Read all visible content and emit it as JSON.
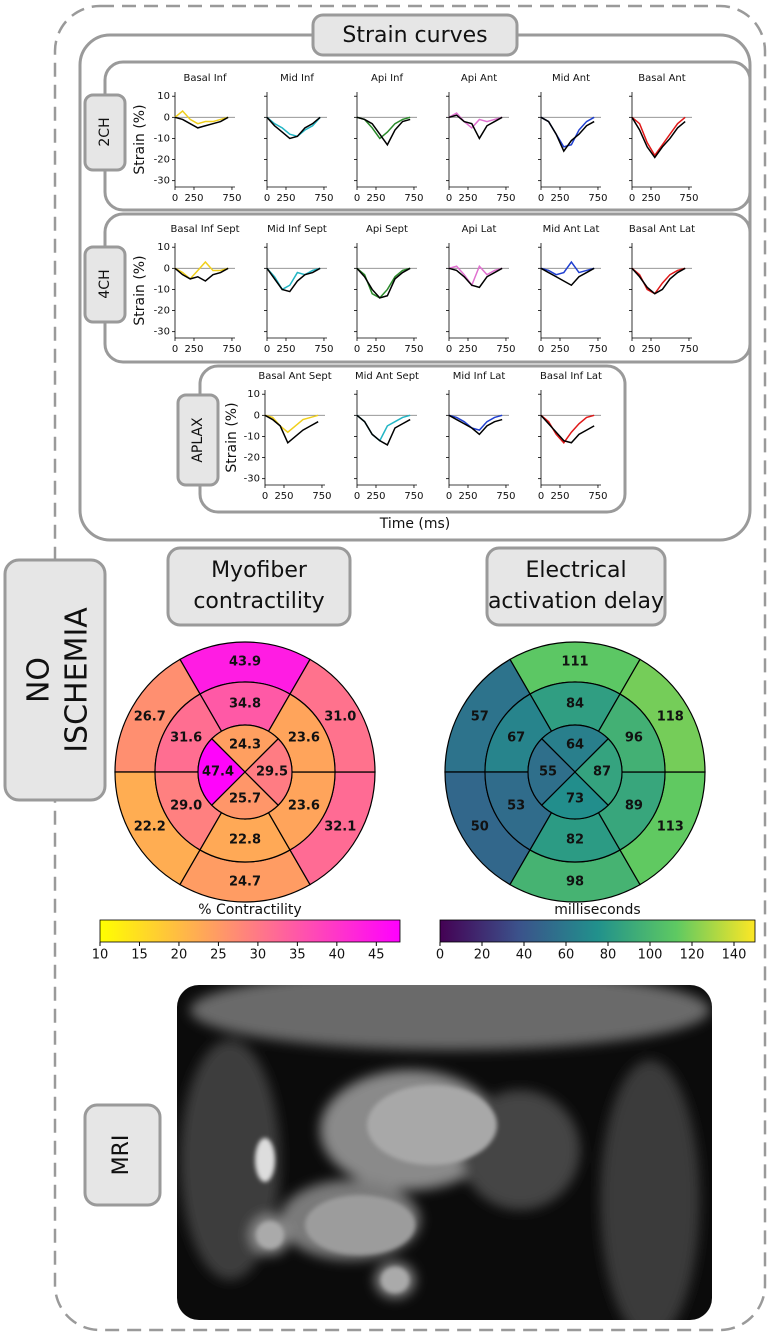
{
  "label_lines": [
    "NO",
    "ISCHEMIA"
  ],
  "strain": {
    "title": "Strain curves",
    "x_label": "Time (ms)",
    "y_label": "Strain (%)",
    "xlim": [
      0,
      790
    ],
    "ylim": [
      -33,
      12
    ],
    "xticks": [
      0,
      250,
      750
    ],
    "yticks": [
      10,
      0,
      -10,
      -20,
      -30
    ],
    "reference_line": 0,
    "x": [
      0,
      100,
      200,
      300,
      400,
      500,
      600,
      700
    ],
    "views": [
      {
        "name": "2CH",
        "panels": [
          {
            "title": "Basal Inf",
            "series": [
              {
                "color": "#f0cf1c",
                "values": [
                  0,
                  3,
                  -1,
                  -3,
                  -2,
                  -2,
                  -1,
                  0
                ]
              },
              {
                "color": "#000000",
                "values": [
                  0,
                  -1,
                  -3,
                  -5,
                  -4,
                  -3,
                  -2,
                  0
                ]
              }
            ]
          },
          {
            "title": "Mid Inf",
            "series": [
              {
                "color": "#22b5c4",
                "values": [
                  0,
                  -3,
                  -5,
                  -8,
                  -9,
                  -6,
                  -4,
                  0
                ]
              },
              {
                "color": "#000000",
                "values": [
                  0,
                  -4,
                  -7,
                  -10,
                  -9,
                  -5,
                  -3,
                  0
                ]
              }
            ]
          },
          {
            "title": "Api Inf",
            "series": [
              {
                "color": "#2a8a2a",
                "values": [
                  0,
                  -1,
                  -5,
                  -10,
                  -7,
                  -3,
                  -1,
                  0
                ]
              },
              {
                "color": "#000000",
                "values": [
                  0,
                  -1,
                  -3,
                  -8,
                  -13,
                  -6,
                  -2,
                  -1
                ]
              }
            ]
          },
          {
            "title": "Api Ant",
            "series": [
              {
                "color": "#e070d0",
                "values": [
                  0,
                  2,
                  -2,
                  -5,
                  -1,
                  -2,
                  -1,
                  0
                ]
              },
              {
                "color": "#000000",
                "values": [
                  0,
                  1,
                  -2,
                  -3,
                  -10,
                  -4,
                  -2,
                  0
                ]
              }
            ]
          },
          {
            "title": "Mid Ant",
            "series": [
              {
                "color": "#1f3fd0",
                "values": [
                  0,
                  -2,
                  -8,
                  -14,
                  -13,
                  -6,
                  -2,
                  0
                ]
              },
              {
                "color": "#000000",
                "values": [
                  0,
                  -2,
                  -8,
                  -16,
                  -11,
                  -8,
                  -4,
                  -2
                ]
              }
            ]
          },
          {
            "title": "Basal Ant",
            "series": [
              {
                "color": "#e01818",
                "values": [
                  0,
                  -3,
                  -12,
                  -18,
                  -13,
                  -8,
                  -3,
                  0
                ]
              },
              {
                "color": "#000000",
                "values": [
                  0,
                  -6,
                  -14,
                  -19,
                  -14,
                  -10,
                  -5,
                  -2
                ]
              }
            ]
          }
        ]
      },
      {
        "name": "4CH",
        "panels": [
          {
            "title": "Basal Inf Sept",
            "series": [
              {
                "color": "#f0cf1c",
                "values": [
                  0,
                  -2,
                  -5,
                  -1,
                  3,
                  -1,
                  -1,
                  0
                ]
              },
              {
                "color": "#000000",
                "values": [
                  0,
                  -3,
                  -5,
                  -4,
                  -6,
                  -3,
                  -2,
                  0
                ]
              }
            ]
          },
          {
            "title": "Mid Inf Sept",
            "series": [
              {
                "color": "#22b5c4",
                "values": [
                  0,
                  -4,
                  -10,
                  -8,
                  -2,
                  -3,
                  -1,
                  0
                ]
              },
              {
                "color": "#000000",
                "values": [
                  0,
                  -5,
                  -10,
                  -11,
                  -6,
                  -3,
                  -2,
                  0
                ]
              }
            ]
          },
          {
            "title": "Api Sept",
            "series": [
              {
                "color": "#2a8a2a",
                "values": [
                  0,
                  -3,
                  -12,
                  -14,
                  -10,
                  -4,
                  -1,
                  0
                ]
              },
              {
                "color": "#000000",
                "values": [
                  0,
                  -4,
                  -10,
                  -14,
                  -13,
                  -5,
                  -2,
                  0
                ]
              }
            ]
          },
          {
            "title": "Api Lat",
            "series": [
              {
                "color": "#e070d0",
                "values": [
                  0,
                  1,
                  -3,
                  -8,
                  1,
                  -3,
                  -1,
                  0
                ]
              },
              {
                "color": "#000000",
                "values": [
                  0,
                  -1,
                  -4,
                  -8,
                  -9,
                  -4,
                  -2,
                  0
                ]
              }
            ]
          },
          {
            "title": "Mid Ant Lat",
            "series": [
              {
                "color": "#1f3fd0",
                "values": [
                  0,
                  -1,
                  -3,
                  -2,
                  3,
                  -2,
                  -1,
                  0
                ]
              },
              {
                "color": "#000000",
                "values": [
                  0,
                  -2,
                  -4,
                  -6,
                  -8,
                  -4,
                  -2,
                  0
                ]
              }
            ]
          },
          {
            "title": "Basal Ant Lat",
            "series": [
              {
                "color": "#e01818",
                "values": [
                  0,
                  -3,
                  -10,
                  -12,
                  -7,
                  -3,
                  -1,
                  0
                ]
              },
              {
                "color": "#000000",
                "values": [
                  0,
                  -4,
                  -9,
                  -12,
                  -10,
                  -5,
                  -2,
                  0
                ]
              }
            ]
          }
        ]
      },
      {
        "name": "APLAX",
        "panels": [
          {
            "title": "Basal Ant Sept",
            "series": [
              {
                "color": "#f0cf1c",
                "values": [
                  0,
                  -1,
                  -5,
                  -8,
                  -5,
                  -2,
                  -1,
                  0
                ]
              },
              {
                "color": "#000000",
                "values": [
                  0,
                  -2,
                  -5,
                  -13,
                  -10,
                  -7,
                  -5,
                  -3
                ]
              }
            ]
          },
          {
            "title": "Mid Ant Sept",
            "series": [
              {
                "color": "#22b5c4",
                "values": [
                  0,
                  -3,
                  -9,
                  -12,
                  -5,
                  -3,
                  -1,
                  0
                ]
              },
              {
                "color": "#000000",
                "values": [
                  0,
                  -3,
                  -9,
                  -12,
                  -14,
                  -6,
                  -4,
                  -2
                ]
              }
            ]
          },
          {
            "title": "Mid Inf Lat",
            "series": [
              {
                "color": "#1f3fd0",
                "values": [
                  0,
                  -1,
                  -3,
                  -6,
                  -7,
                  -3,
                  -1,
                  0
                ]
              },
              {
                "color": "#000000",
                "values": [
                  0,
                  -2,
                  -4,
                  -6,
                  -9,
                  -5,
                  -3,
                  -2
                ]
              }
            ]
          },
          {
            "title": "Basal Inf Lat",
            "series": [
              {
                "color": "#e01818",
                "values": [
                  0,
                  -3,
                  -9,
                  -13,
                  -8,
                  -4,
                  -1,
                  0
                ]
              },
              {
                "color": "#000000",
                "values": [
                  0,
                  -4,
                  -8,
                  -12,
                  -13,
                  -9,
                  -7,
                  -5
                ]
              }
            ]
          }
        ]
      }
    ]
  },
  "bullseyes": [
    {
      "title_lines": [
        "Myofiber",
        "contractility"
      ],
      "colorbar_label": "% Contractility",
      "clim": [
        10,
        48
      ],
      "cticks": [
        10,
        15,
        20,
        25,
        30,
        35,
        40,
        45
      ],
      "colormap": [
        "#ffff00",
        "#ff00ff"
      ],
      "outer": [
        43.9,
        26.7,
        22.2,
        24.7,
        32.1,
        31.0
      ],
      "outer_labels": [
        "43.9",
        "26.7",
        "22.2",
        "24.7",
        "32.1",
        "31.0"
      ],
      "mid": [
        34.8,
        31.6,
        29.0,
        22.8,
        23.6,
        23.6
      ],
      "mid_labels": [
        "34.8",
        "31.6",
        "29.0",
        "22.8",
        "23.6",
        "23.6"
      ],
      "inner": [
        24.3,
        47.4,
        25.7,
        29.5
      ],
      "inner_labels": [
        "24.3",
        "47.4",
        "25.7",
        "29.5"
      ]
    },
    {
      "title_lines": [
        "Electrical",
        "activation delay"
      ],
      "colorbar_label": "milliseconds",
      "clim": [
        0,
        150
      ],
      "cticks": [
        0,
        20,
        40,
        60,
        80,
        100,
        120,
        140
      ],
      "colormap": [
        "#440154",
        "#3b528b",
        "#21918c",
        "#5ec962",
        "#fde725"
      ],
      "outer": [
        111,
        57,
        50,
        98,
        113,
        118
      ],
      "mid": [
        84,
        67,
        53,
        82,
        89,
        96
      ],
      "inner": [
        64,
        55,
        73,
        87
      ]
    }
  ],
  "mri_label": "MRI"
}
